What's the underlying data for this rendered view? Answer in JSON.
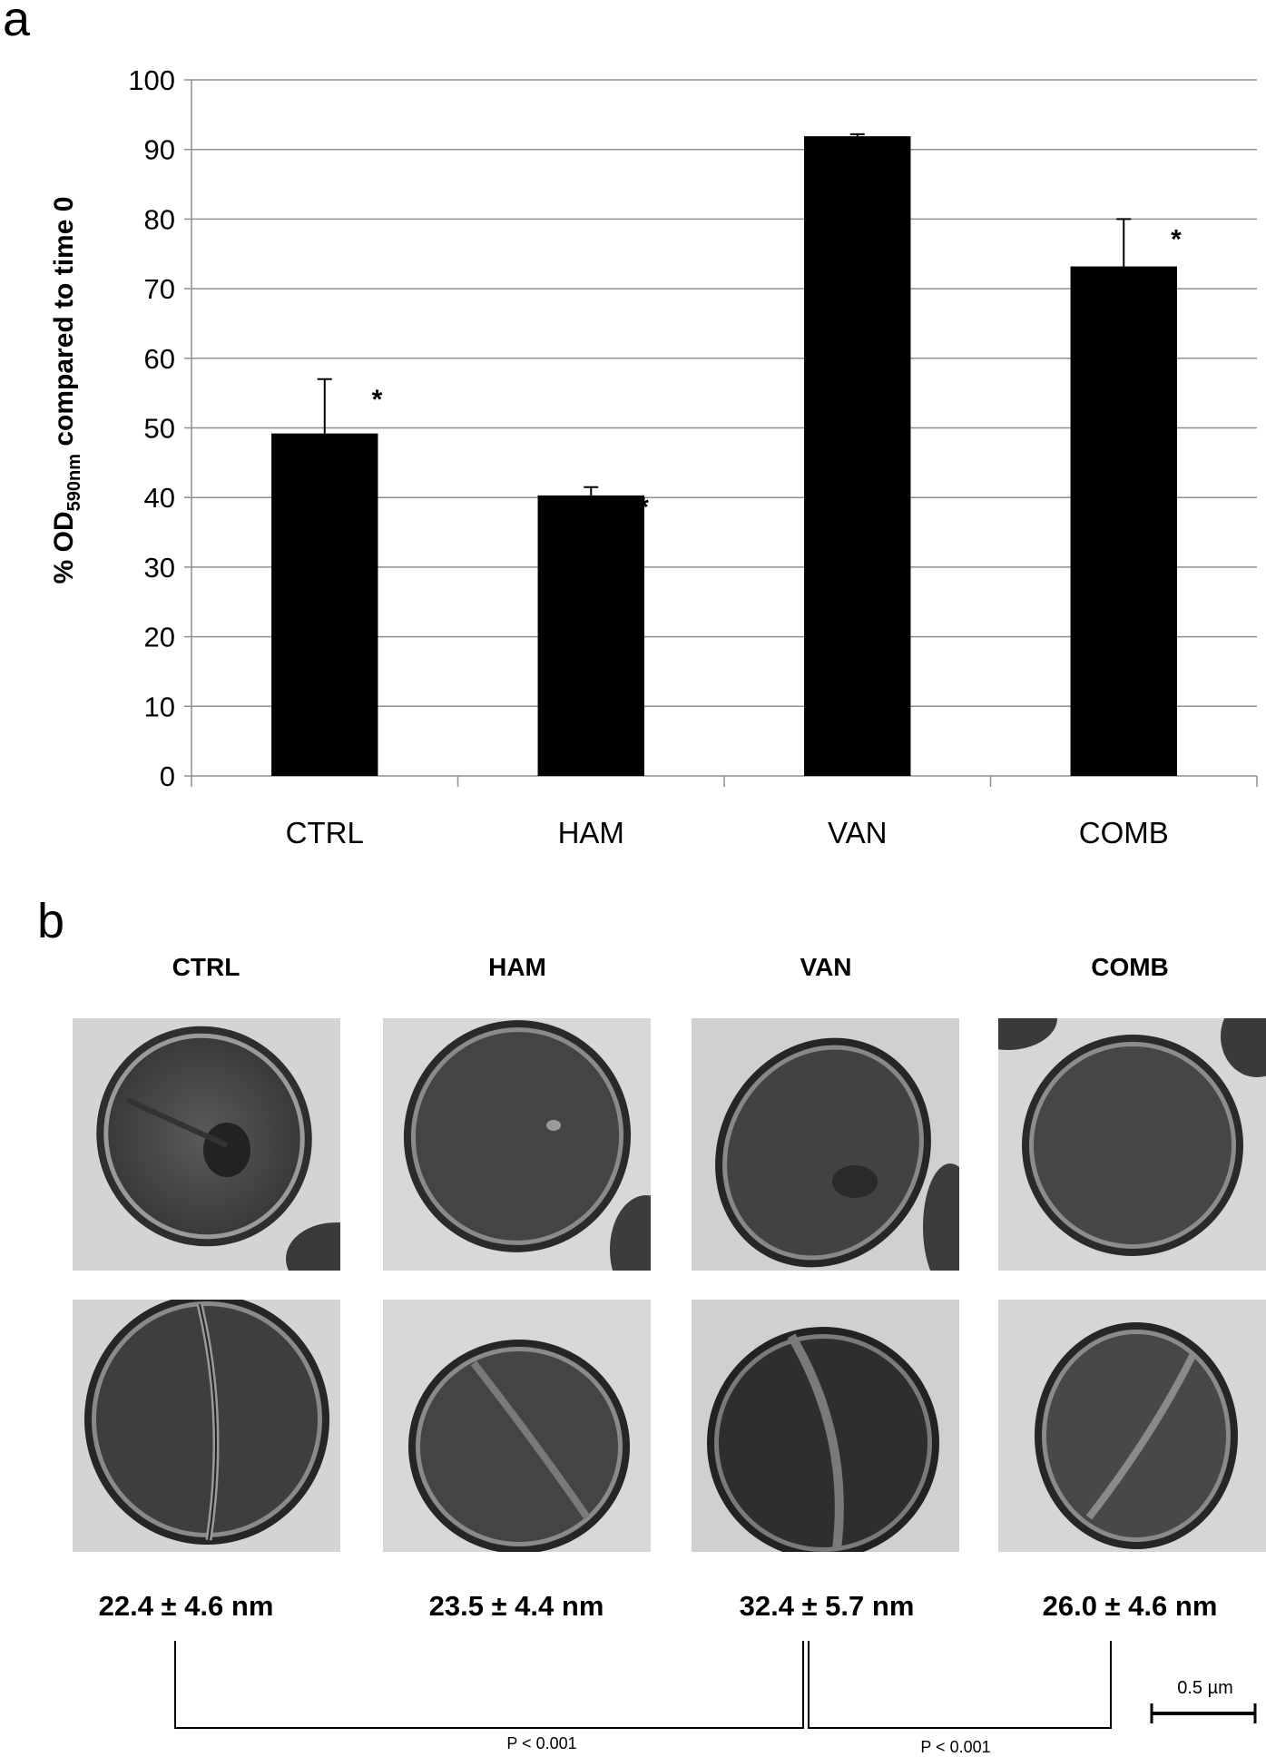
{
  "panel_a": {
    "letter": "a"
  },
  "panel_b": {
    "letter": "b"
  },
  "chart_data": {
    "type": "bar",
    "categories": [
      "CTRL",
      "HAM",
      "VAN",
      "COMB"
    ],
    "values": [
      49.2,
      40.3,
      91.9,
      73.2
    ],
    "error": [
      7.8,
      1.2,
      0.3,
      6.8
    ],
    "significance": [
      "*",
      "*",
      "",
      "*"
    ],
    "ylabel_prefix": "% OD",
    "ylabel_sub": "590nm",
    "ylabel_suffix": " compared to time 0",
    "ylim": [
      0,
      100
    ],
    "yticks": [
      0,
      10,
      20,
      30,
      40,
      50,
      60,
      70,
      80,
      90,
      100
    ],
    "grid": true,
    "bar_color": "#000000"
  },
  "columns": [
    "CTRL",
    "HAM",
    "VAN",
    "COMB"
  ],
  "thickness": [
    "22.4 ± 4.6 nm",
    "23.5 ± 4.4 nm",
    "32.4 ± 5.7 nm",
    "26.0 ± 4.6 nm"
  ],
  "comparisons": [
    {
      "label": "P < 0.001"
    },
    {
      "label": "P < 0.001"
    }
  ],
  "scale_bar": {
    "label": "0.5 µm"
  }
}
